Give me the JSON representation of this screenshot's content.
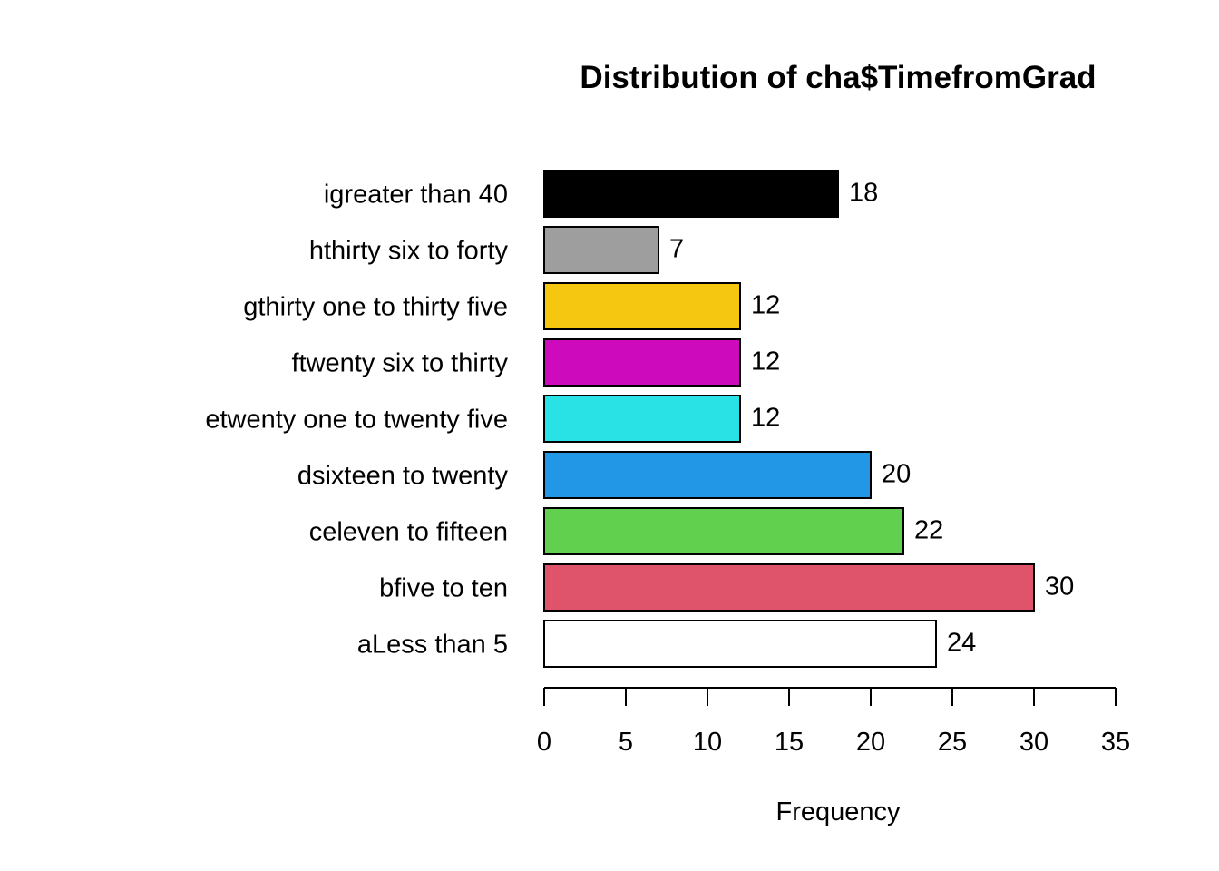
{
  "chart_data": {
    "type": "bar",
    "orientation": "horizontal",
    "title": "Distribution of cha$TimefromGrad",
    "xlabel": "Frequency",
    "ylabel": "",
    "xlim": [
      0,
      35
    ],
    "x_ticks": [
      0,
      5,
      10,
      15,
      20,
      25,
      30,
      35
    ],
    "grid": false,
    "show_value_labels": true,
    "categories": [
      "aLess than 5",
      "bfive to ten",
      "celeven to fifteen",
      "dsixteen to twenty",
      "etwenty one to twenty five",
      "ftwenty six to thirty",
      "gthirty one to thirty five",
      "hthirty six to forty",
      "igreater than 40"
    ],
    "values": [
      24,
      30,
      22,
      20,
      12,
      12,
      12,
      7,
      18
    ],
    "colors": [
      "#FFFFFF",
      "#DF536B",
      "#61D04F",
      "#2297E6",
      "#28E2E5",
      "#CD0BBC",
      "#F5C710",
      "#9E9E9E",
      "#000000"
    ]
  }
}
